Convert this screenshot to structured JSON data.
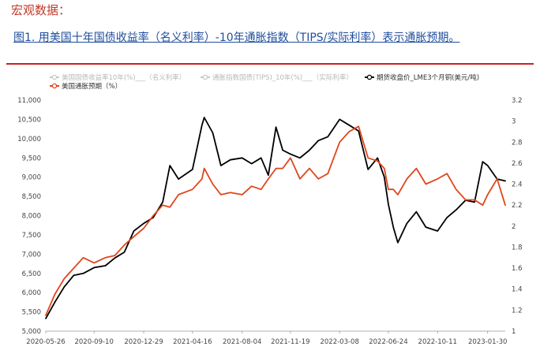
{
  "heading": "宏观数据：",
  "figure_title": "图1. 用美国十年国债收益率（名义利率）-10年通胀指数（TIPS/实际利率）表示通胀预期。",
  "chart_data": {
    "type": "line",
    "x_ticks": [
      "2020-05-26",
      "2020-09-10",
      "2020-12-29",
      "2021-04-16",
      "2021-08-04",
      "2021-11-19",
      "2022-03-08",
      "2022-06-24",
      "2022-10-11",
      "2023-01-30"
    ],
    "x_range": [
      "2020-05-26",
      "2023-03-10"
    ],
    "y_left": {
      "min": 5000,
      "max": 11000,
      "ticks": [
        "5,000",
        "5,500",
        "6,000",
        "6,500",
        "7,000",
        "7,500",
        "8,000",
        "8,500",
        "9,000",
        "9,500",
        "10,000",
        "10,500",
        "11,000"
      ]
    },
    "y_right": {
      "min": 1,
      "max": 3.2,
      "ticks": [
        "1",
        "1.2",
        "1.4",
        "1.6",
        "1.8",
        "2",
        "2.2",
        "2.4",
        "2.6",
        "2.8",
        "3",
        "3.2"
      ]
    },
    "legend": [
      {
        "name": "美国国债收益率10年(%)___（名义利率）",
        "color": "#bdbdbd",
        "muted": true
      },
      {
        "name": "通胀指数国债(TIPS)_10年(%)___（实际利率）",
        "color": "#bdbdbd",
        "muted": true
      },
      {
        "name": "期货收盘价_LME3个月铜(美元/吨)",
        "color": "#000000",
        "muted": false
      },
      {
        "name": "美国通胀预期（%）",
        "color": "#e0461b",
        "muted": false
      }
    ],
    "series": [
      {
        "name": "期货收盘价_LME3个月铜(美元/吨)",
        "axis": "left",
        "color": "#000000",
        "points": [
          [
            "2020-05-26",
            5330
          ],
          [
            "2020-06-15",
            5750
          ],
          [
            "2020-07-06",
            6150
          ],
          [
            "2020-07-27",
            6450
          ],
          [
            "2020-08-17",
            6500
          ],
          [
            "2020-09-10",
            6650
          ],
          [
            "2020-10-05",
            6700
          ],
          [
            "2020-10-26",
            6900
          ],
          [
            "2020-11-16",
            7050
          ],
          [
            "2020-12-07",
            7600
          ],
          [
            "2020-12-29",
            7800
          ],
          [
            "2021-01-19",
            7950
          ],
          [
            "2021-02-09",
            8350
          ],
          [
            "2021-02-25",
            9300
          ],
          [
            "2021-03-16",
            8950
          ],
          [
            "2021-04-16",
            9200
          ],
          [
            "2021-05-07",
            10350
          ],
          [
            "2021-05-12",
            10550
          ],
          [
            "2021-05-31",
            10150
          ],
          [
            "2021-06-18",
            9300
          ],
          [
            "2021-07-09",
            9450
          ],
          [
            "2021-08-04",
            9500
          ],
          [
            "2021-08-25",
            9350
          ],
          [
            "2021-09-15",
            9500
          ],
          [
            "2021-10-01",
            9050
          ],
          [
            "2021-10-18",
            10300
          ],
          [
            "2021-11-02",
            9700
          ],
          [
            "2021-11-19",
            9600
          ],
          [
            "2021-12-10",
            9500
          ],
          [
            "2021-12-31",
            9700
          ],
          [
            "2022-01-20",
            9950
          ],
          [
            "2022-02-10",
            10050
          ],
          [
            "2022-03-08",
            10500
          ],
          [
            "2022-03-29",
            10350
          ],
          [
            "2022-04-19",
            10200
          ],
          [
            "2022-05-10",
            9200
          ],
          [
            "2022-05-31",
            9500
          ],
          [
            "2022-06-15",
            9000
          ],
          [
            "2022-06-24",
            8300
          ],
          [
            "2022-07-05",
            7700
          ],
          [
            "2022-07-15",
            7300
          ],
          [
            "2022-08-04",
            7800
          ],
          [
            "2022-08-25",
            8100
          ],
          [
            "2022-09-15",
            7700
          ],
          [
            "2022-10-11",
            7600
          ],
          [
            "2022-11-01",
            7950
          ],
          [
            "2022-11-21",
            8150
          ],
          [
            "2022-12-12",
            8400
          ],
          [
            "2023-01-01",
            8350
          ],
          [
            "2023-01-19",
            9400
          ],
          [
            "2023-01-30",
            9300
          ],
          [
            "2023-02-20",
            8950
          ],
          [
            "2023-03-10",
            8900
          ]
        ]
      },
      {
        "name": "美国通胀预期（%）",
        "axis": "right",
        "color": "#e0461b",
        "points": [
          [
            "2020-05-26",
            1.15
          ],
          [
            "2020-06-15",
            1.35
          ],
          [
            "2020-07-06",
            1.5
          ],
          [
            "2020-07-27",
            1.6
          ],
          [
            "2020-08-17",
            1.7
          ],
          [
            "2020-09-10",
            1.65
          ],
          [
            "2020-10-05",
            1.7
          ],
          [
            "2020-10-26",
            1.72
          ],
          [
            "2020-11-16",
            1.82
          ],
          [
            "2020-12-07",
            1.9
          ],
          [
            "2020-12-29",
            1.98
          ],
          [
            "2021-01-19",
            2.1
          ],
          [
            "2021-02-09",
            2.2
          ],
          [
            "2021-02-25",
            2.18
          ],
          [
            "2021-03-16",
            2.3
          ],
          [
            "2021-04-16",
            2.35
          ],
          [
            "2021-05-07",
            2.45
          ],
          [
            "2021-05-12",
            2.55
          ],
          [
            "2021-05-31",
            2.4
          ],
          [
            "2021-06-18",
            2.3
          ],
          [
            "2021-07-09",
            2.32
          ],
          [
            "2021-08-04",
            2.3
          ],
          [
            "2021-08-25",
            2.38
          ],
          [
            "2021-09-15",
            2.35
          ],
          [
            "2021-10-01",
            2.45
          ],
          [
            "2021-10-18",
            2.55
          ],
          [
            "2021-11-02",
            2.55
          ],
          [
            "2021-11-19",
            2.65
          ],
          [
            "2021-12-10",
            2.45
          ],
          [
            "2021-12-31",
            2.55
          ],
          [
            "2022-01-20",
            2.45
          ],
          [
            "2022-02-10",
            2.5
          ],
          [
            "2022-03-08",
            2.8
          ],
          [
            "2022-03-29",
            2.9
          ],
          [
            "2022-04-19",
            2.95
          ],
          [
            "2022-05-10",
            2.65
          ],
          [
            "2022-05-31",
            2.62
          ],
          [
            "2022-06-15",
            2.55
          ],
          [
            "2022-06-24",
            2.35
          ],
          [
            "2022-07-05",
            2.35
          ],
          [
            "2022-07-15",
            2.3
          ],
          [
            "2022-08-04",
            2.45
          ],
          [
            "2022-08-25",
            2.55
          ],
          [
            "2022-09-15",
            2.4
          ],
          [
            "2022-10-11",
            2.45
          ],
          [
            "2022-11-01",
            2.5
          ],
          [
            "2022-11-21",
            2.35
          ],
          [
            "2022-12-12",
            2.25
          ],
          [
            "2023-01-01",
            2.25
          ],
          [
            "2023-01-19",
            2.2
          ],
          [
            "2023-01-30",
            2.3
          ],
          [
            "2023-02-20",
            2.45
          ],
          [
            "2023-03-10",
            2.2
          ]
        ]
      }
    ]
  }
}
